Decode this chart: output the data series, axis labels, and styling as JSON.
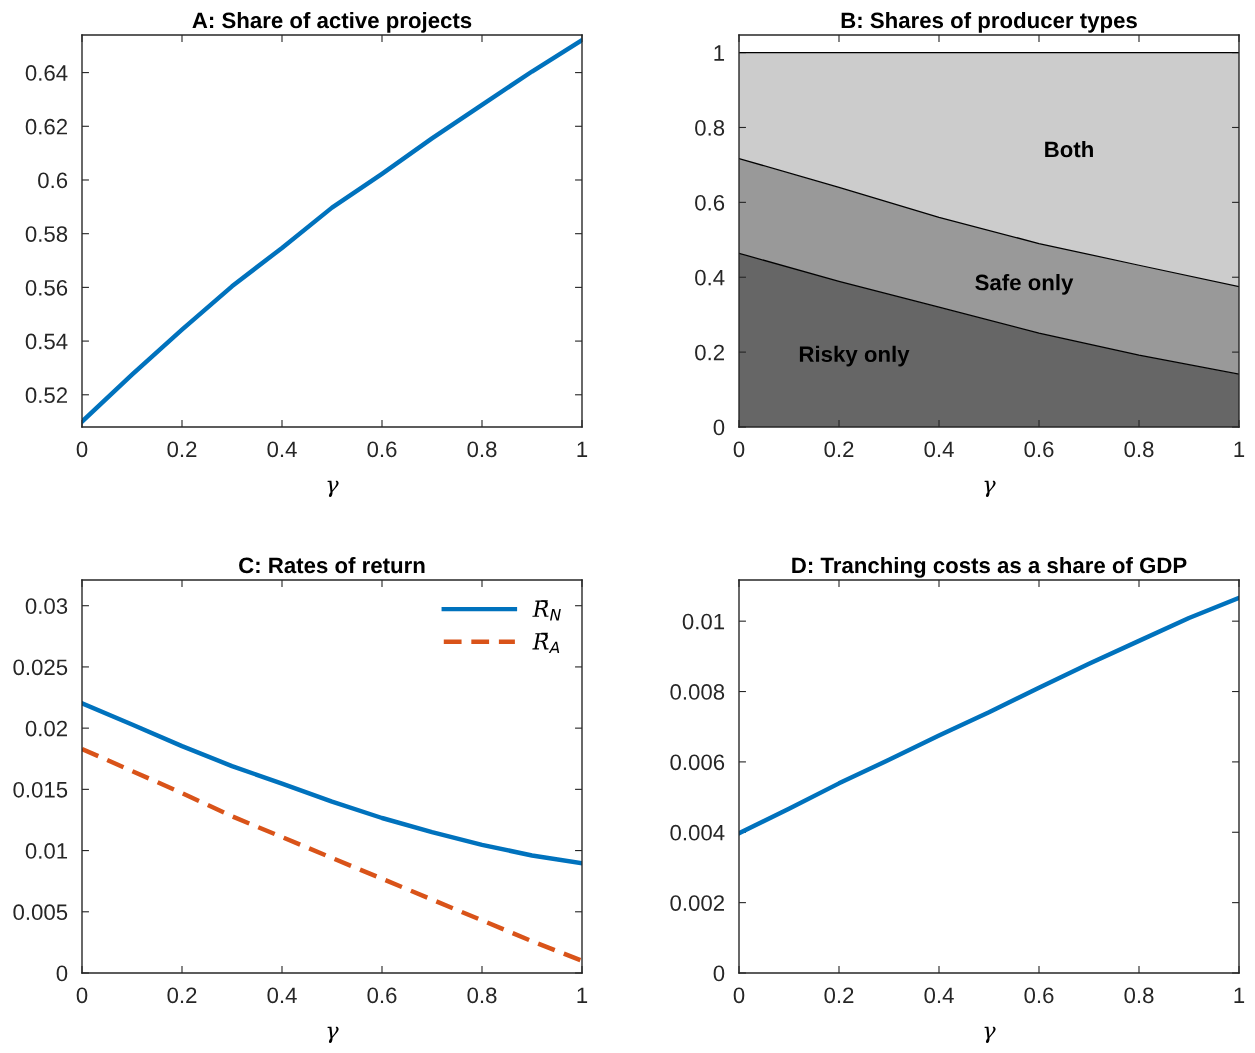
{
  "chart_data": [
    {
      "type": "line",
      "title": "A: Share of active projects",
      "xlabel": "γ",
      "x": [
        0,
        0.1,
        0.2,
        0.3,
        0.4,
        0.5,
        0.6,
        0.7,
        0.8,
        0.9,
        1
      ],
      "series": [
        {
          "color": "#0072bd",
          "values": [
            0.51,
            0.5275,
            0.5443,
            0.5604,
            0.5747,
            0.5897,
            0.6023,
            0.6155,
            0.628,
            0.6404,
            0.6521
          ]
        }
      ],
      "xlim": [
        0,
        1
      ],
      "xticks": [
        0,
        0.2,
        0.4,
        0.6,
        0.8,
        1
      ],
      "ylim": [
        0.508,
        0.654
      ],
      "yticks": [
        0.52,
        0.54,
        0.56,
        0.58,
        0.6,
        0.62,
        0.64
      ],
      "grid": false,
      "legend": false
    },
    {
      "type": "area",
      "stacked": true,
      "title": "B: Shares of producer types",
      "xlabel": "γ",
      "x": [
        0,
        0.2,
        0.4,
        0.6,
        0.8,
        1
      ],
      "series": [
        {
          "name": "Risky only",
          "color": "#666666",
          "values": [
            0.464,
            0.389,
            0.32,
            0.251,
            0.192,
            0.141
          ]
        },
        {
          "name": "Safe only",
          "color": "#999999",
          "values": [
            0.253,
            0.251,
            0.24,
            0.239,
            0.24,
            0.234
          ]
        },
        {
          "name": "Both",
          "color": "#cccccc",
          "values": [
            0.283,
            0.36,
            0.44,
            0.51,
            0.568,
            0.625
          ]
        }
      ],
      "xlim": [
        0,
        1
      ],
      "xticks": [
        0,
        0.2,
        0.4,
        0.6,
        0.8,
        1
      ],
      "ylim": [
        0,
        1.047
      ],
      "yticks": [
        0,
        0.2,
        0.4,
        0.6,
        0.8,
        1
      ],
      "grid": false,
      "legend": false
    },
    {
      "type": "line",
      "title": "C: Rates of return",
      "xlabel": "γ",
      "x": [
        0,
        0.1,
        0.2,
        0.3,
        0.4,
        0.5,
        0.6,
        0.7,
        0.8,
        0.9,
        1
      ],
      "series": [
        {
          "name": "R̄$_{N}$",
          "color": "#0072bd",
          "line_style": "solid",
          "values": [
            0.02203,
            0.0203,
            0.01853,
            0.0169,
            0.01547,
            0.014,
            0.01266,
            0.0115,
            0.01047,
            0.0096,
            0.00897
          ]
        },
        {
          "name": "R̄$_{A}$",
          "color": "#d95319",
          "line_style": "dashed",
          "values": [
            0.0183,
            0.0165,
            0.0147,
            0.0128,
            0.0111,
            0.0094,
            0.0077,
            0.006,
            0.0043,
            0.0026,
            0.001
          ]
        }
      ],
      "xlim": [
        0,
        1
      ],
      "xticks": [
        0,
        0.2,
        0.4,
        0.6,
        0.8,
        1
      ],
      "ylim": [
        0,
        0.0321
      ],
      "yticks": [
        0,
        0.005,
        0.01,
        0.015,
        0.02,
        0.025,
        0.03
      ],
      "grid": false,
      "legend": "top right"
    },
    {
      "type": "line",
      "title": "D: Tranching costs as a share of GDP",
      "xlabel": "γ",
      "x": [
        0,
        0.1,
        0.2,
        0.3,
        0.4,
        0.5,
        0.6,
        0.7,
        0.8,
        0.9,
        1
      ],
      "series": [
        {
          "color": "#0072bd",
          "values": [
            0.00397,
            0.00467,
            0.00539,
            0.00606,
            0.00675,
            0.00741,
            0.00811,
            0.00879,
            0.00944,
            0.01009,
            0.01066
          ]
        }
      ],
      "xlim": [
        0,
        1
      ],
      "xticks": [
        0,
        0.2,
        0.4,
        0.6,
        0.8,
        1
      ],
      "ylim": [
        0,
        0.01117
      ],
      "yticks": [
        0,
        0.002,
        0.004,
        0.006,
        0.008,
        0.01
      ],
      "grid": false,
      "legend": false
    }
  ]
}
